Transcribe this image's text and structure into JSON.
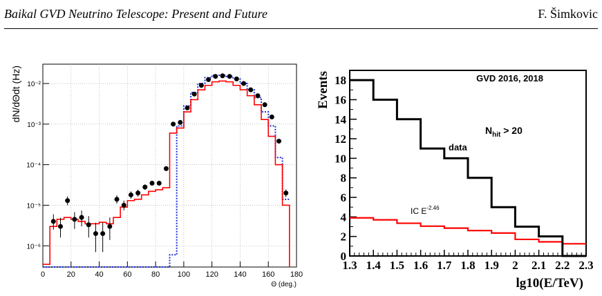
{
  "header": {
    "title": "Baikal GVD Neutrino Telescope: Present and Future",
    "author": "F. Šimkovic"
  },
  "chart_data": [
    {
      "type": "line",
      "title": "",
      "xlabel": "Θ (deg.)",
      "ylabel": "dN/dΘdt (Hz)",
      "xlim": [
        0,
        180
      ],
      "ylim": [
        3e-07,
        0.03
      ],
      "yscale": "log",
      "grid": true,
      "x_ticks": [
        "0",
        "20",
        "40",
        "60",
        "80",
        "100",
        "120",
        "140",
        "160",
        "180"
      ],
      "y_ticks": [
        "10⁻⁶",
        "10⁻⁵",
        "10⁻⁴",
        "10⁻³",
        "10⁻²"
      ],
      "series": [
        {
          "style": "points-with-errorbars",
          "color": "#000000",
          "x": [
            7.5,
            12.5,
            17.5,
            22.5,
            27.5,
            32.5,
            37.5,
            42.5,
            47.5,
            52.5,
            57.5,
            62.5,
            67.5,
            72.5,
            77.5,
            82.5,
            87.5,
            92.5,
            97.5,
            102.5,
            107.5,
            112.5,
            117.5,
            122.5,
            127.5,
            132.5,
            137.5,
            142.5,
            147.5,
            152.5,
            157.5,
            162.5,
            167.5,
            172.5
          ],
          "y": [
            4e-06,
            3e-06,
            1.3e-05,
            4.5e-06,
            5e-06,
            3.3e-06,
            2e-06,
            2e-06,
            3e-06,
            1.4e-05,
            1e-05,
            1.8e-05,
            2e-05,
            2.8e-05,
            3.5e-05,
            3.5e-05,
            8e-05,
            0.001,
            0.0011,
            0.0025,
            0.0055,
            0.009,
            0.0125,
            0.015,
            0.0155,
            0.015,
            0.013,
            0.01,
            0.007,
            0.005,
            0.003,
            0.0015,
            0.00038,
            2e-05
          ],
          "err_lo": [
            1.5e-06,
            1.4e-06,
            3e-06,
            1.9e-06,
            2e-06,
            1.7e-06,
            1.3e-06,
            1.3e-06,
            1.6e-06,
            3e-06,
            2.5e-06,
            3.5e-06,
            3.6e-06,
            4e-06,
            4.5e-06,
            4.5e-06,
            7e-06,
            2.5e-05,
            2.6e-05,
            4e-05,
            6e-05,
            8e-05,
            9e-05,
            0.0001,
            0.0001,
            0.0001,
            9e-05,
            8e-05,
            7e-05,
            6e-05,
            4.5e-05,
            3e-05,
            1.6e-05,
            4e-06
          ],
          "err_hi": [
            2e-06,
            1.9e-06,
            3.5e-06,
            2.3e-06,
            2.4e-06,
            2.1e-06,
            1.7e-06,
            1.7e-06,
            2e-06,
            3.5e-06,
            3e-06,
            4e-06,
            4.2e-06,
            4.6e-06,
            5e-06,
            5e-06,
            8e-06,
            2.6e-05,
            2.7e-05,
            4.2e-05,
            6.2e-05,
            8.2e-05,
            9.2e-05,
            0.000102,
            0.000102,
            0.000102,
            9.2e-05,
            8.2e-05,
            7.2e-05,
            6.2e-05,
            4.7e-05,
            3.2e-05,
            1.7e-05,
            4.5e-06
          ]
        },
        {
          "style": "step",
          "color": "#ff0000",
          "edges": [
            0,
            5,
            10,
            15,
            20,
            25,
            30,
            35,
            40,
            45,
            50,
            55,
            60,
            65,
            70,
            75,
            80,
            85,
            90,
            95,
            100,
            105,
            110,
            115,
            120,
            125,
            130,
            135,
            140,
            145,
            150,
            155,
            160,
            165,
            170,
            175
          ],
          "values": [
            3.5e-07,
            3e-06,
            4.5e-06,
            5e-06,
            4.5e-06,
            4e-06,
            3.5e-06,
            3.5e-06,
            3.8e-06,
            3.5e-06,
            5e-06,
            9e-06,
            1.3e-05,
            1.4e-05,
            1.8e-05,
            2.2e-05,
            2.4e-05,
            2.7e-05,
            0.0006,
            0.0008,
            0.002,
            0.004,
            0.007,
            0.009,
            0.011,
            0.0115,
            0.011,
            0.009,
            0.007,
            0.005,
            0.003,
            0.0013,
            0.0005,
            0.0001,
            1e-05,
            3e-07
          ]
        },
        {
          "style": "step-dotted",
          "color": "#1f2fd6",
          "edges": [
            0,
            5,
            10,
            15,
            20,
            25,
            30,
            35,
            40,
            45,
            50,
            55,
            60,
            65,
            70,
            75,
            80,
            85,
            90,
            95,
            100,
            105,
            110,
            115,
            120,
            125,
            130,
            135,
            140,
            145,
            150,
            155,
            160,
            165,
            170,
            175
          ],
          "values": [
            3e-07,
            3e-07,
            3e-07,
            3e-07,
            3e-07,
            3e-07,
            3e-07,
            3e-07,
            3e-07,
            3e-07,
            3e-07,
            3e-07,
            3e-07,
            3e-07,
            3e-07,
            3e-07,
            3e-07,
            3e-07,
            6e-07,
            0.0009,
            0.0028,
            0.006,
            0.01,
            0.014,
            0.016,
            0.016,
            0.015,
            0.013,
            0.01,
            0.007,
            0.0045,
            0.002,
            0.0009,
            0.00015,
            1.4e-05,
            1.4e-05
          ]
        }
      ]
    },
    {
      "type": "line",
      "title": "",
      "xlabel": "lg10(E/TeV)",
      "ylabel": "Events",
      "xlim": [
        1.3,
        2.3
      ],
      "ylim": [
        0,
        19
      ],
      "x_ticks": [
        "1.3",
        "1.4",
        "1.5",
        "1.6",
        "1.7",
        "1.8",
        "1.9",
        "2",
        "2.1",
        "2.2",
        "2.3"
      ],
      "y_ticks": [
        "0",
        "2",
        "4",
        "6",
        "8",
        "10",
        "12",
        "14",
        "16",
        "18"
      ],
      "annotations": {
        "runs": "GVD 2016, 2018",
        "cut_base": "N",
        "cut_sub": "hit",
        "cut_rest": " > 20",
        "data_label": "data",
        "model_base": "IC E",
        "model_exp": "-2.46"
      },
      "series": [
        {
          "style": "step",
          "color": "#000000",
          "edges": [
            1.3,
            1.4,
            1.5,
            1.6,
            1.7,
            1.8,
            1.9,
            2.0,
            2.1,
            2.2,
            2.3
          ],
          "values": [
            18,
            16,
            14,
            11,
            10,
            8,
            5,
            3,
            2,
            0
          ]
        },
        {
          "style": "step",
          "color": "#ff0000",
          "edges": [
            1.3,
            1.4,
            1.5,
            1.6,
            1.7,
            1.8,
            1.9,
            2.0,
            2.1,
            2.2,
            2.3
          ],
          "values": [
            3.9,
            3.7,
            3.35,
            3.05,
            2.85,
            2.6,
            2.35,
            1.7,
            1.45,
            1.25
          ]
        }
      ]
    }
  ]
}
